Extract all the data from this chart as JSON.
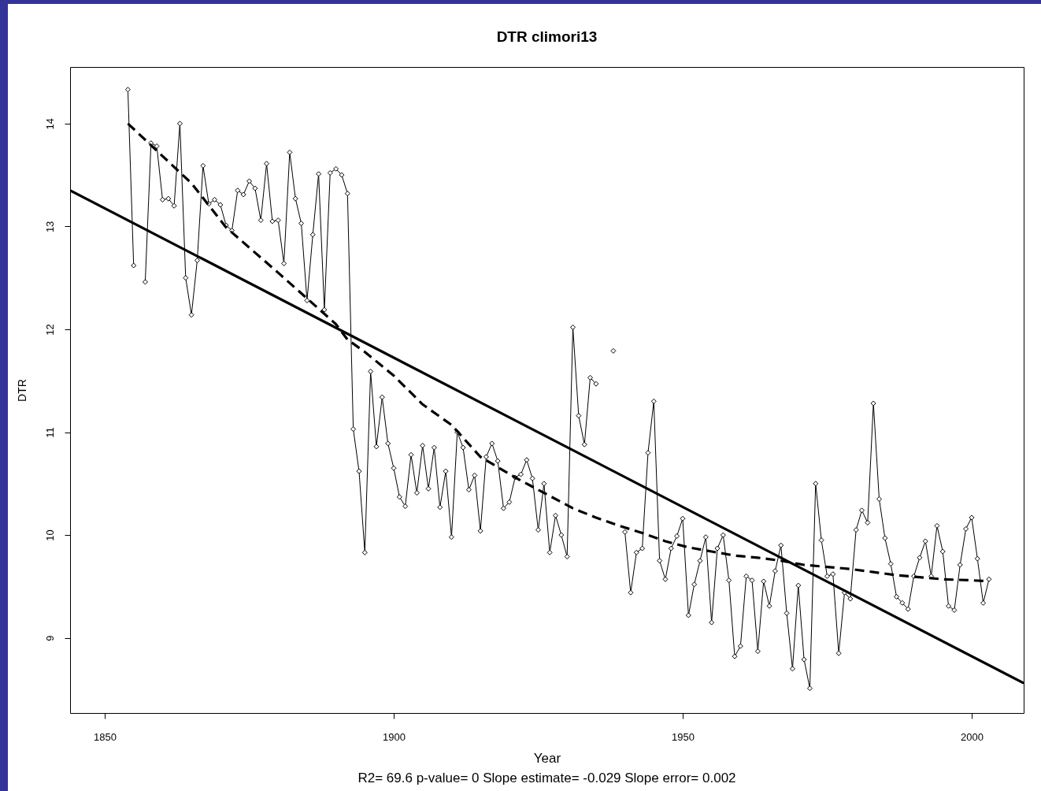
{
  "chart_data": {
    "type": "line",
    "title": "DTR   climori13",
    "xlabel": "Year",
    "ylabel": "DTR",
    "annotations": [
      "R2= 69.6  p-value= 0  Slope estimate= -0.029  Slope error= 0.002"
    ],
    "x": [
      1854,
      1855,
      1856,
      1857,
      1858,
      1859,
      1860,
      1861,
      1862,
      1863,
      1864,
      1865,
      1866,
      1867,
      1868,
      1869,
      1870,
      1871,
      1872,
      1873,
      1874,
      1875,
      1876,
      1877,
      1878,
      1879,
      1880,
      1881,
      1882,
      1883,
      1884,
      1885,
      1886,
      1887,
      1888,
      1889,
      1890,
      1891,
      1892,
      1893,
      1894,
      1895,
      1896,
      1897,
      1898,
      1899,
      1900,
      1901,
      1902,
      1903,
      1904,
      1905,
      1906,
      1907,
      1908,
      1909,
      1910,
      1911,
      1912,
      1913,
      1914,
      1915,
      1916,
      1917,
      1918,
      1919,
      1920,
      1921,
      1922,
      1923,
      1924,
      1925,
      1926,
      1927,
      1928,
      1929,
      1930,
      1931,
      1932,
      1933,
      1934,
      1935,
      1936,
      1937,
      1938,
      1939,
      1940,
      1941,
      1942,
      1943,
      1944,
      1945,
      1946,
      1947,
      1948,
      1949,
      1950,
      1951,
      1952,
      1953,
      1954,
      1955,
      1956,
      1957,
      1958,
      1959,
      1960,
      1961,
      1962,
      1963,
      1964,
      1965,
      1966,
      1967,
      1968,
      1969,
      1970,
      1971,
      1972,
      1973,
      1974,
      1975,
      1976,
      1977,
      1978,
      1979,
      1980,
      1981,
      1982,
      1983,
      1984,
      1985,
      1986,
      1987,
      1988,
      1989,
      1990,
      1991,
      1992,
      1993,
      1994,
      1995,
      1996,
      1997,
      1998,
      1999,
      2000,
      2001,
      2002,
      2003
    ],
    "series": [
      {
        "color": "#000000",
        "marker": "diamond",
        "line_style": "solid",
        "values": [
          14.33,
          12.62,
          null,
          12.46,
          13.81,
          13.78,
          13.26,
          13.27,
          13.2,
          14.0,
          12.5,
          12.14,
          12.67,
          13.59,
          13.22,
          13.26,
          13.21,
          13.01,
          12.96,
          13.35,
          13.31,
          13.44,
          13.37,
          13.06,
          13.61,
          13.05,
          13.06,
          12.64,
          13.72,
          13.27,
          13.03,
          12.28,
          12.92,
          13.51,
          12.19,
          13.52,
          13.56,
          13.5,
          13.32,
          11.03,
          10.62,
          9.83,
          11.59,
          10.86,
          11.34,
          10.89,
          10.65,
          10.37,
          10.28,
          10.78,
          10.41,
          10.87,
          10.45,
          10.85,
          10.27,
          10.62,
          9.98,
          11.0,
          10.85,
          10.44,
          10.58,
          10.04,
          10.76,
          10.89,
          10.72,
          10.26,
          10.32,
          10.56,
          10.59,
          10.73,
          10.55,
          10.05,
          10.5,
          9.83,
          10.19,
          10.0,
          9.79,
          12.02,
          11.16,
          10.88,
          11.53,
          11.47,
          null,
          null,
          11.79,
          null,
          10.03,
          9.44,
          9.83,
          9.87,
          10.8,
          11.3,
          9.75,
          9.57,
          9.87,
          9.99,
          10.16,
          9.22,
          9.52,
          9.75,
          9.98,
          9.15,
          9.87,
          10.0,
          9.56,
          8.82,
          8.92,
          9.6,
          9.56,
          8.87,
          9.55,
          9.31,
          9.65,
          9.9,
          9.24,
          8.7,
          9.51,
          8.79,
          8.51,
          10.5,
          9.95,
          9.6,
          9.62,
          8.85,
          9.44,
          9.38,
          10.05,
          10.24,
          10.12,
          11.28,
          10.35,
          9.97,
          9.72,
          9.4,
          9.34,
          9.28,
          9.6,
          9.78,
          9.94,
          9.6,
          10.09,
          9.84,
          9.31,
          9.27,
          9.71,
          10.06,
          10.17,
          9.77,
          9.34,
          9.57
        ]
      },
      {
        "color": "#000000",
        "marker": "none",
        "line_style": "solid",
        "x": [
          1844,
          2009
        ],
        "values": [
          13.35,
          8.56
        ]
      },
      {
        "color": "#000000",
        "marker": "none",
        "line_style": "dashed",
        "x": [
          1854,
          1865,
          1871,
          1880,
          1890,
          1892,
          1895,
          1900,
          1905,
          1910,
          1915,
          1921,
          1927,
          1931,
          1935,
          1939,
          1943,
          1947,
          1951,
          1955,
          1959,
          1963,
          1967,
          1971,
          1975,
          1979,
          1983,
          1987,
          1991,
          1995,
          2000,
          2003
        ],
        "values": [
          14.0,
          13.42,
          12.99,
          12.55,
          12.05,
          11.9,
          11.78,
          11.55,
          11.27,
          11.07,
          10.76,
          10.56,
          10.38,
          10.26,
          10.17,
          10.09,
          10.02,
          9.94,
          9.88,
          9.84,
          9.8,
          9.78,
          9.75,
          9.71,
          9.69,
          9.67,
          9.64,
          9.61,
          9.59,
          9.57,
          9.56,
          9.55
        ]
      }
    ],
    "xlim": [
      1844,
      2009
    ],
    "ylim": [
      8.27,
      14.55
    ],
    "xticks": [
      1850,
      1900,
      1950,
      2000
    ],
    "yticks": [
      9,
      10,
      11,
      12,
      13,
      14
    ],
    "grid": false
  }
}
